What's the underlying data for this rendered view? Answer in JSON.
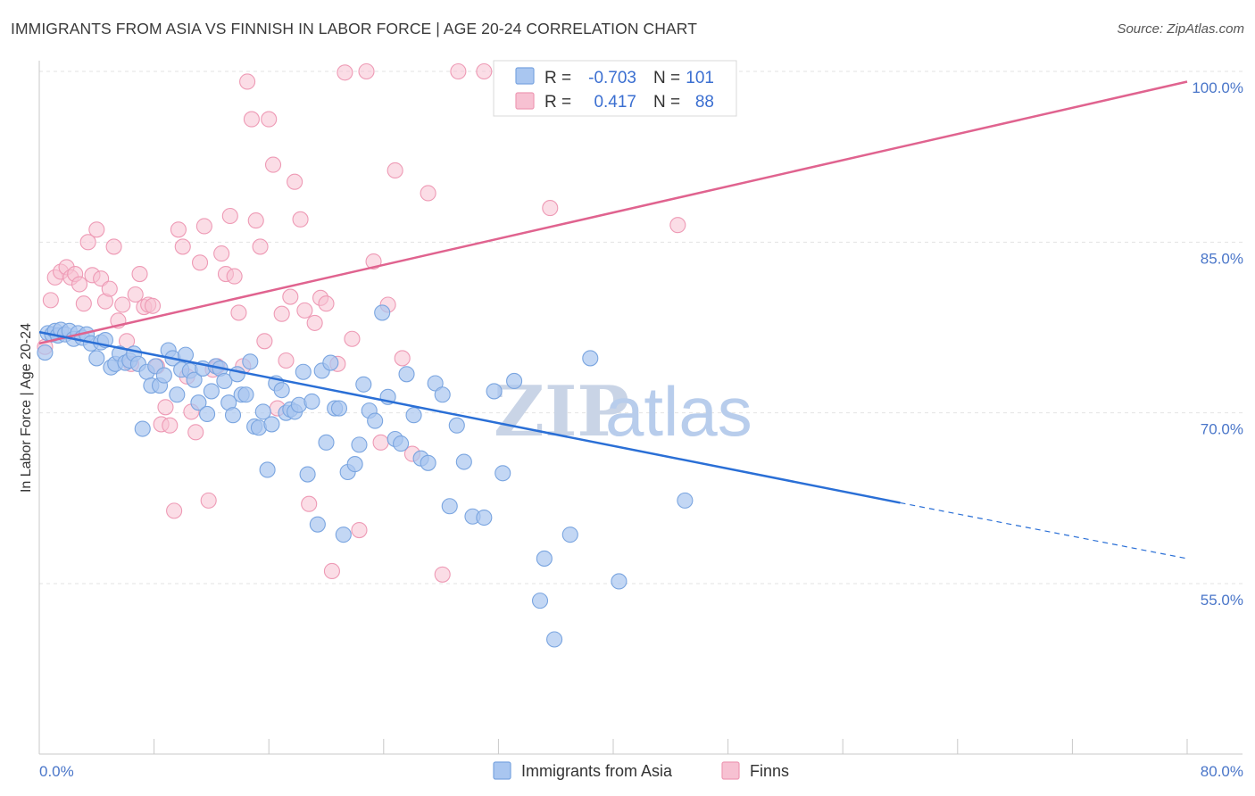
{
  "title": "IMMIGRANTS FROM ASIA VS FINNISH IN LABOR FORCE | AGE 20-24 CORRELATION CHART",
  "source": "Source: ZipAtlas.com",
  "watermark": {
    "part1": "ZIP",
    "part2": "atlas"
  },
  "legend_box": {
    "rows": [
      {
        "r_label": "R =",
        "r_value": "-0.703",
        "n_label": "N =",
        "n_value": "101"
      },
      {
        "r_label": "R =",
        "r_value": "0.417",
        "n_label": "N =",
        "n_value": "88"
      }
    ]
  },
  "bottom_legend": [
    "Immigrants from Asia",
    "Finns"
  ],
  "colors": {
    "blue_fill": "#a9c6f0",
    "blue_stroke": "#7aa5e0",
    "blue_line": "#2a6fd6",
    "pink_fill": "#f7c1d2",
    "pink_stroke": "#ee9ab5",
    "pink_line": "#e0638f",
    "grid": "#e3e3e3",
    "axis_label": "#4a76c9"
  },
  "chart_data": {
    "type": "scatter",
    "title": "IMMIGRANTS FROM ASIA VS FINNISH IN LABOR FORCE | AGE 20-24 CORRELATION CHART",
    "xlabel": "",
    "ylabel": "In Labor Force | Age 20-24",
    "xlim": [
      0,
      80
    ],
    "ylim": [
      40,
      101.5
    ],
    "x_ticks": [
      "0.0%",
      "80.0%"
    ],
    "y_ticks": [
      {
        "value": 55,
        "label": "55.0%"
      },
      {
        "value": 70,
        "label": "70.0%"
      },
      {
        "value": 85,
        "label": "85.0%"
      },
      {
        "value": 100,
        "label": "100.0%"
      }
    ],
    "grid": true,
    "series": [
      {
        "name": "Immigrants from Asia",
        "R": -0.703,
        "N": 101,
        "trend": {
          "x0": 0,
          "y0": 77.1,
          "x1": 60,
          "y1": 62.1,
          "dash_to_x": 80,
          "dash_to_y": 57.2
        },
        "points": [
          [
            0.4,
            75.3
          ],
          [
            0.6,
            77.0
          ],
          [
            0.9,
            76.9
          ],
          [
            1.1,
            77.2
          ],
          [
            1.3,
            76.8
          ],
          [
            1.5,
            77.3
          ],
          [
            1.8,
            76.9
          ],
          [
            2.1,
            77.2
          ],
          [
            2.4,
            76.5
          ],
          [
            2.7,
            77.0
          ],
          [
            3.0,
            76.6
          ],
          [
            3.3,
            76.9
          ],
          [
            3.6,
            76.1
          ],
          [
            4.0,
            74.8
          ],
          [
            4.3,
            76.2
          ],
          [
            4.6,
            76.4
          ],
          [
            5.0,
            74.0
          ],
          [
            5.3,
            74.3
          ],
          [
            5.6,
            75.2
          ],
          [
            6.0,
            74.4
          ],
          [
            6.3,
            74.6
          ],
          [
            6.6,
            75.2
          ],
          [
            6.9,
            74.3
          ],
          [
            7.2,
            68.6
          ],
          [
            7.5,
            73.6
          ],
          [
            7.8,
            72.4
          ],
          [
            8.1,
            74.1
          ],
          [
            8.4,
            72.4
          ],
          [
            8.7,
            73.3
          ],
          [
            9.0,
            75.5
          ],
          [
            9.3,
            74.8
          ],
          [
            9.6,
            71.6
          ],
          [
            9.9,
            73.8
          ],
          [
            10.2,
            75.1
          ],
          [
            10.5,
            73.7
          ],
          [
            10.8,
            72.9
          ],
          [
            11.1,
            70.9
          ],
          [
            11.4,
            73.9
          ],
          [
            11.7,
            69.9
          ],
          [
            12.0,
            71.9
          ],
          [
            12.3,
            74.1
          ],
          [
            12.6,
            73.9
          ],
          [
            12.9,
            72.8
          ],
          [
            13.2,
            70.9
          ],
          [
            13.5,
            69.8
          ],
          [
            13.8,
            73.4
          ],
          [
            14.1,
            71.6
          ],
          [
            14.4,
            71.6
          ],
          [
            14.7,
            74.5
          ],
          [
            15.0,
            68.8
          ],
          [
            15.3,
            68.7
          ],
          [
            15.6,
            70.1
          ],
          [
            15.9,
            65.0
          ],
          [
            16.2,
            69.0
          ],
          [
            16.5,
            72.6
          ],
          [
            16.9,
            72.0
          ],
          [
            17.2,
            70.0
          ],
          [
            17.5,
            70.3
          ],
          [
            17.8,
            70.1
          ],
          [
            18.1,
            70.7
          ],
          [
            18.4,
            73.6
          ],
          [
            18.7,
            64.6
          ],
          [
            19.0,
            71.0
          ],
          [
            19.4,
            60.2
          ],
          [
            19.7,
            73.7
          ],
          [
            20.0,
            67.4
          ],
          [
            20.3,
            74.4
          ],
          [
            20.6,
            70.4
          ],
          [
            20.9,
            70.4
          ],
          [
            21.2,
            59.3
          ],
          [
            21.5,
            64.8
          ],
          [
            22.0,
            65.5
          ],
          [
            22.3,
            67.2
          ],
          [
            22.6,
            72.5
          ],
          [
            23.0,
            70.2
          ],
          [
            23.4,
            69.3
          ],
          [
            23.9,
            78.8
          ],
          [
            24.3,
            71.4
          ],
          [
            24.8,
            67.7
          ],
          [
            25.2,
            67.3
          ],
          [
            25.6,
            73.4
          ],
          [
            26.1,
            69.8
          ],
          [
            26.6,
            66.0
          ],
          [
            27.1,
            65.6
          ],
          [
            27.6,
            72.6
          ],
          [
            28.1,
            71.6
          ],
          [
            28.6,
            61.8
          ],
          [
            29.1,
            68.9
          ],
          [
            29.6,
            65.7
          ],
          [
            30.2,
            60.9
          ],
          [
            31.0,
            60.8
          ],
          [
            31.7,
            71.9
          ],
          [
            32.3,
            64.7
          ],
          [
            33.1,
            72.8
          ],
          [
            34.9,
            53.5
          ],
          [
            35.2,
            57.2
          ],
          [
            35.9,
            50.1
          ],
          [
            37.0,
            59.3
          ],
          [
            38.4,
            74.8
          ],
          [
            40.4,
            55.2
          ],
          [
            45.0,
            62.3
          ]
        ]
      },
      {
        "name": "Finns",
        "R": 0.417,
        "N": 88,
        "trend": {
          "x0": 0,
          "y0": 76.1,
          "x1": 80,
          "y1": 99.1
        },
        "points": [
          [
            0.4,
            75.8
          ],
          [
            0.8,
            79.9
          ],
          [
            1.1,
            81.9
          ],
          [
            1.5,
            82.4
          ],
          [
            1.9,
            82.8
          ],
          [
            2.2,
            81.9
          ],
          [
            2.5,
            82.2
          ],
          [
            2.8,
            81.3
          ],
          [
            3.1,
            79.6
          ],
          [
            3.4,
            85.0
          ],
          [
            3.7,
            82.1
          ],
          [
            4.0,
            86.1
          ],
          [
            4.3,
            81.8
          ],
          [
            4.6,
            79.8
          ],
          [
            4.9,
            80.9
          ],
          [
            5.2,
            84.6
          ],
          [
            5.5,
            78.1
          ],
          [
            5.8,
            79.5
          ],
          [
            6.1,
            76.3
          ],
          [
            6.4,
            74.3
          ],
          [
            6.7,
            80.4
          ],
          [
            7.0,
            82.2
          ],
          [
            7.3,
            79.3
          ],
          [
            7.6,
            79.5
          ],
          [
            7.9,
            79.4
          ],
          [
            8.2,
            74.1
          ],
          [
            8.5,
            69.0
          ],
          [
            8.8,
            70.5
          ],
          [
            9.1,
            68.9
          ],
          [
            9.4,
            61.4
          ],
          [
            9.7,
            86.1
          ],
          [
            10.0,
            84.6
          ],
          [
            10.3,
            73.2
          ],
          [
            10.6,
            70.1
          ],
          [
            10.9,
            68.3
          ],
          [
            11.2,
            83.2
          ],
          [
            11.5,
            86.4
          ],
          [
            11.8,
            62.3
          ],
          [
            12.1,
            73.8
          ],
          [
            12.4,
            74.1
          ],
          [
            12.7,
            84.0
          ],
          [
            13.0,
            82.2
          ],
          [
            13.3,
            87.3
          ],
          [
            13.6,
            82.0
          ],
          [
            13.9,
            78.8
          ],
          [
            14.2,
            74.1
          ],
          [
            14.5,
            99.1
          ],
          [
            14.8,
            95.8
          ],
          [
            15.1,
            86.9
          ],
          [
            15.4,
            84.6
          ],
          [
            15.7,
            76.3
          ],
          [
            16.0,
            95.8
          ],
          [
            16.3,
            91.8
          ],
          [
            16.6,
            70.4
          ],
          [
            16.9,
            78.7
          ],
          [
            17.2,
            74.6
          ],
          [
            17.5,
            80.2
          ],
          [
            17.8,
            90.3
          ],
          [
            18.2,
            87.0
          ],
          [
            18.5,
            79.0
          ],
          [
            18.8,
            62.0
          ],
          [
            19.2,
            77.9
          ],
          [
            19.6,
            80.1
          ],
          [
            20.0,
            79.6
          ],
          [
            20.4,
            56.1
          ],
          [
            20.8,
            74.3
          ],
          [
            21.3,
            99.9
          ],
          [
            21.8,
            76.5
          ],
          [
            22.3,
            59.7
          ],
          [
            22.8,
            100.0
          ],
          [
            23.3,
            83.3
          ],
          [
            23.8,
            67.4
          ],
          [
            24.3,
            79.5
          ],
          [
            24.8,
            91.3
          ],
          [
            25.3,
            74.8
          ],
          [
            26.0,
            66.4
          ],
          [
            27.1,
            89.3
          ],
          [
            28.1,
            55.8
          ],
          [
            29.2,
            100.0
          ],
          [
            31.0,
            100.0
          ],
          [
            32.5,
            100.0
          ],
          [
            33.3,
            100.0
          ],
          [
            35.0,
            100.0
          ],
          [
            35.6,
            88.0
          ],
          [
            37.1,
            100.0
          ],
          [
            39.1,
            100.0
          ],
          [
            43.0,
            100.0
          ],
          [
            44.5,
            86.5
          ]
        ]
      }
    ]
  }
}
